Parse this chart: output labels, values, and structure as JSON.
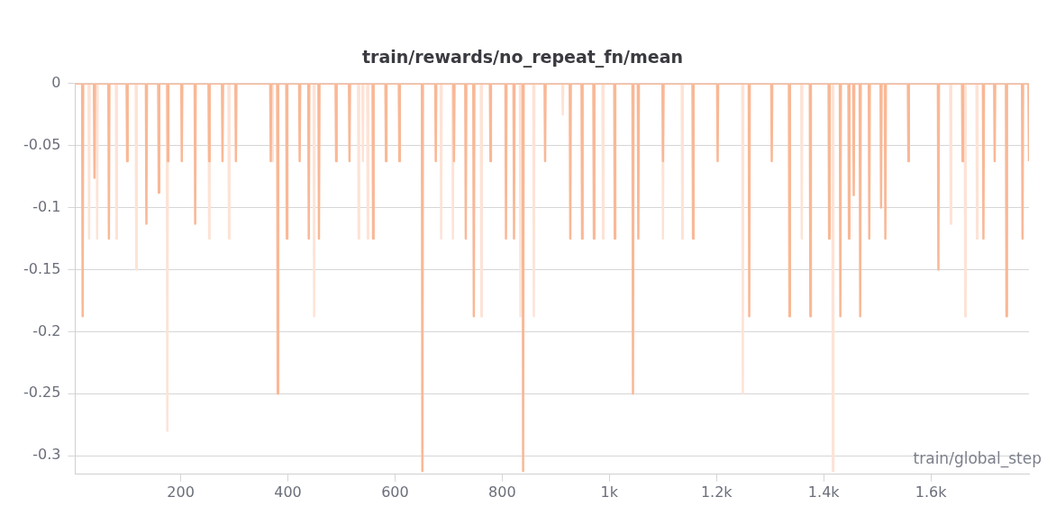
{
  "chart_data": {
    "type": "line",
    "title": "train/rewards/no_repeat_fn/mean",
    "xlabel": "train/global_step",
    "xlim": [
      3,
      1783
    ],
    "ylim": [
      -0.315,
      0
    ],
    "xticks": [
      200,
      400,
      600,
      800,
      {
        "value": 1000,
        "label": "1k"
      },
      {
        "value": 1200,
        "label": "1.2k"
      },
      {
        "value": 1400,
        "label": "1.4k"
      },
      {
        "value": 1600,
        "label": "1.6k"
      }
    ],
    "yticks": [
      0,
      -0.05,
      -0.1,
      -0.15,
      -0.2,
      -0.25,
      -0.3
    ],
    "grid": "y",
    "legend": false,
    "marker": "none",
    "line_style": "solid",
    "series": [
      {
        "color": "#fde3d6",
        "x": [
          3,
          28,
          29,
          30,
          43,
          44,
          45,
          79,
          80,
          81,
          116,
          117,
          118,
          174,
          175,
          176,
          252,
          253,
          254,
          289,
          290,
          291,
          370,
          371,
          372,
          448,
          449,
          450,
          531,
          532,
          533,
          539,
          540,
          541,
          548,
          549,
          550,
          685,
          686,
          687,
          707,
          708,
          709,
          760,
          761,
          762,
          833,
          834,
          835,
          858,
          859,
          860,
          912,
          913,
          914,
          987,
          988,
          989,
          1099,
          1100,
          1101,
          1135,
          1136,
          1137,
          1248,
          1249,
          1250,
          1358,
          1359,
          1360,
          1416,
          1417,
          1418,
          1636,
          1637,
          1638,
          1663,
          1664,
          1665,
          1685,
          1686,
          1687,
          1783
        ],
        "values": [
          0,
          0,
          -0.125,
          0,
          0,
          -0.125,
          0,
          0,
          -0.125,
          0,
          0,
          -0.15,
          0,
          0,
          -0.28,
          0,
          0,
          -0.125,
          0,
          0,
          -0.125,
          0,
          0,
          -0.0625,
          0,
          0,
          -0.1875,
          0,
          0,
          -0.125,
          0,
          0,
          -0.0625,
          0,
          0,
          -0.125,
          0,
          0,
          -0.125,
          0,
          0,
          -0.125,
          0,
          0,
          -0.1875,
          0,
          0,
          -0.1875,
          0,
          0,
          -0.1875,
          0,
          0,
          -0.025,
          0,
          0,
          -0.125,
          0,
          0,
          -0.125,
          0,
          0,
          -0.125,
          0,
          0,
          -0.25,
          0,
          0,
          -0.125,
          0,
          0,
          -0.3125,
          0,
          0,
          -0.113,
          0,
          0,
          -0.1875,
          0,
          0,
          -0.125,
          0,
          0
        ]
      },
      {
        "color": "#f9b896",
        "x": [
          3,
          16,
          17,
          18,
          38,
          39,
          40,
          65,
          66,
          67,
          99,
          100,
          101,
          135,
          136,
          137,
          158,
          159,
          160,
          175,
          176,
          177,
          201,
          202,
          203,
          226,
          227,
          228,
          252,
          253,
          254,
          277,
          278,
          279,
          302,
          303,
          304,
          367,
          368,
          369,
          380,
          381,
          382,
          397,
          398,
          399,
          421,
          422,
          423,
          438,
          439,
          440,
          457,
          458,
          459,
          489,
          490,
          491,
          514,
          515,
          516,
          558,
          559,
          560,
          582,
          583,
          584,
          607,
          608,
          609,
          650,
          651,
          652,
          675,
          676,
          677,
          709,
          710,
          711,
          731,
          732,
          733,
          746,
          747,
          748,
          777,
          778,
          779,
          806,
          807,
          808,
          821,
          822,
          823,
          838,
          839,
          840,
          879,
          880,
          881,
          926,
          927,
          928,
          948,
          949,
          950,
          970,
          971,
          972,
          1009,
          1010,
          1011,
          1043,
          1044,
          1045,
          1053,
          1054,
          1055,
          1099,
          1100,
          1101,
          1155,
          1156,
          1157,
          1201,
          1202,
          1203,
          1260,
          1261,
          1262,
          1302,
          1303,
          1304,
          1335,
          1336,
          1337,
          1374,
          1375,
          1376,
          1409,
          1410,
          1411,
          1430,
          1431,
          1432,
          1446,
          1447,
          1448,
          1455,
          1456,
          1457,
          1467,
          1468,
          1469,
          1484,
          1485,
          1486,
          1506,
          1507,
          1508,
          1514,
          1515,
          1516,
          1557,
          1558,
          1559,
          1613,
          1614,
          1615,
          1658,
          1659,
          1660,
          1697,
          1698,
          1699,
          1718,
          1719,
          1720,
          1740,
          1741,
          1742,
          1770,
          1771,
          1772,
          1782,
          1783
        ],
        "values": [
          0,
          0,
          -0.1875,
          0,
          0,
          -0.076,
          0,
          0,
          -0.125,
          0,
          0,
          -0.0625,
          0,
          0,
          -0.113,
          0,
          0,
          -0.088,
          0,
          0,
          -0.0625,
          0,
          0,
          -0.0625,
          0,
          0,
          -0.113,
          0,
          0,
          -0.0625,
          0,
          0,
          -0.0625,
          0,
          0,
          -0.0625,
          0,
          0,
          -0.0625,
          0,
          0,
          -0.25,
          0,
          0,
          -0.125,
          0,
          0,
          -0.0625,
          0,
          0,
          -0.125,
          0,
          0,
          -0.125,
          0,
          0,
          -0.0625,
          0,
          0,
          -0.0625,
          0,
          0,
          -0.125,
          0,
          0,
          -0.0625,
          0,
          0,
          -0.0625,
          0,
          0,
          -0.3125,
          0,
          0,
          -0.0625,
          0,
          0,
          -0.0625,
          0,
          0,
          -0.125,
          0,
          0,
          -0.1875,
          0,
          0,
          -0.0625,
          0,
          0,
          -0.125,
          0,
          0,
          -0.125,
          0,
          0,
          -0.3125,
          0,
          0,
          -0.0625,
          0,
          0,
          -0.125,
          0,
          0,
          -0.125,
          0,
          0,
          -0.125,
          0,
          0,
          -0.125,
          0,
          0,
          -0.25,
          0,
          0,
          -0.125,
          0,
          0,
          -0.0625,
          0,
          0,
          -0.125,
          0,
          0,
          -0.0625,
          0,
          0,
          -0.1875,
          0,
          0,
          -0.0625,
          0,
          0,
          -0.1875,
          0,
          0,
          -0.1875,
          0,
          0,
          -0.125,
          0,
          0,
          -0.1875,
          0,
          0,
          -0.125,
          0,
          0,
          -0.09,
          0,
          0,
          -0.1875,
          0,
          0,
          -0.125,
          0,
          0,
          -0.1,
          0,
          0,
          -0.125,
          0,
          0,
          -0.0625,
          0,
          0,
          -0.15,
          0,
          0,
          -0.0625,
          0,
          0,
          -0.125,
          0,
          0,
          -0.0625,
          0,
          0,
          -0.1875,
          0,
          0,
          -0.125,
          0,
          0,
          -0.0625
        ]
      }
    ]
  }
}
